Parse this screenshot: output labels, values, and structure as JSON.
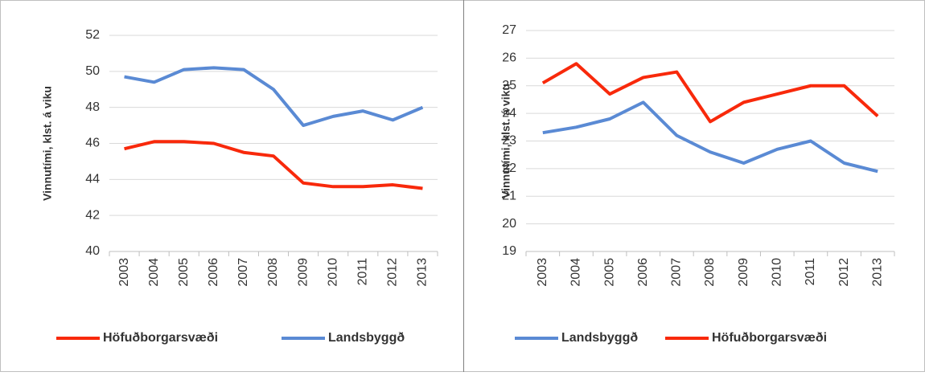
{
  "chart_data": [
    {
      "type": "line",
      "y_label": "Vinnutími, klst. á viku",
      "categories": [
        "2003",
        "2004",
        "2005",
        "2006",
        "2007",
        "2008",
        "2009",
        "2010",
        "2011",
        "2012",
        "2013"
      ],
      "series": [
        {
          "name": "Höfuðborgarsvæði",
          "color": "#f8290b",
          "values": [
            45.7,
            46.1,
            46.1,
            46.0,
            45.5,
            45.3,
            43.8,
            43.6,
            43.6,
            43.7,
            43.5
          ]
        },
        {
          "name": "Landsbyggð",
          "color": "#5a8ad4",
          "values": [
            49.7,
            49.4,
            50.1,
            50.2,
            50.1,
            49.0,
            47.0,
            47.5,
            47.8,
            47.3,
            48.0
          ]
        }
      ],
      "ylim": [
        40,
        52
      ],
      "yticks": [
        40,
        42,
        44,
        46,
        48,
        50,
        52
      ],
      "grid": true,
      "legend": "bottom"
    },
    {
      "type": "line",
      "y_label": "Vinnutími, klst. á viku",
      "categories": [
        "2003",
        "2004",
        "2005",
        "2006",
        "2007",
        "2008",
        "2009",
        "2010",
        "2011",
        "2012",
        "2013"
      ],
      "series": [
        {
          "name": "Landsbyggð",
          "color": "#5a8ad4",
          "values": [
            23.3,
            23.5,
            23.8,
            24.4,
            23.2,
            22.6,
            22.2,
            22.7,
            23.0,
            22.2,
            21.9
          ]
        },
        {
          "name": "Höfuðborgarsvæði",
          "color": "#f8290b",
          "values": [
            25.1,
            25.8,
            24.7,
            25.3,
            25.5,
            23.7,
            24.4,
            24.7,
            25.0,
            25.0,
            23.9
          ]
        }
      ],
      "ylim": [
        19,
        27
      ],
      "yticks": [
        19,
        20,
        21,
        22,
        23,
        24,
        25,
        26,
        27
      ],
      "grid": true,
      "legend": "bottom"
    }
  ]
}
